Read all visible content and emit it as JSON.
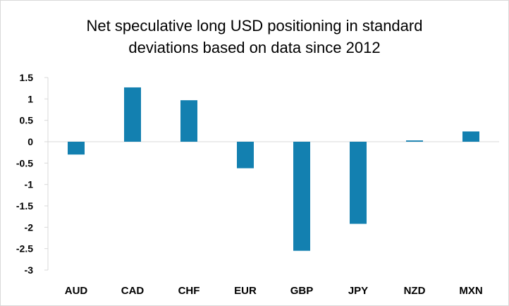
{
  "chart_data": {
    "type": "bar",
    "title_lines": [
      "Net speculative long USD positioning in standard",
      "deviations based on data since 2012"
    ],
    "categories": [
      "AUD",
      "CAD",
      "CHF",
      "EUR",
      "GBP",
      "JPY",
      "NZD",
      "MXN"
    ],
    "values": [
      -0.3,
      1.27,
      0.97,
      -0.62,
      -2.55,
      -1.92,
      0.03,
      0.24
    ],
    "ylim": [
      -3,
      1.5
    ],
    "y_ticks": [
      1.5,
      1,
      0.5,
      0,
      -0.5,
      -1,
      -1.5,
      -2,
      -2.5,
      -3
    ],
    "y_tick_labels": [
      "1.5",
      "1",
      "0.5",
      "0",
      "-0.5",
      "-1",
      "-1.5",
      "-2",
      "-2.5",
      "-3"
    ],
    "grid": false,
    "legend": "none",
    "bar_color": "#1380B0",
    "axis_color": "#d9d9d9"
  }
}
